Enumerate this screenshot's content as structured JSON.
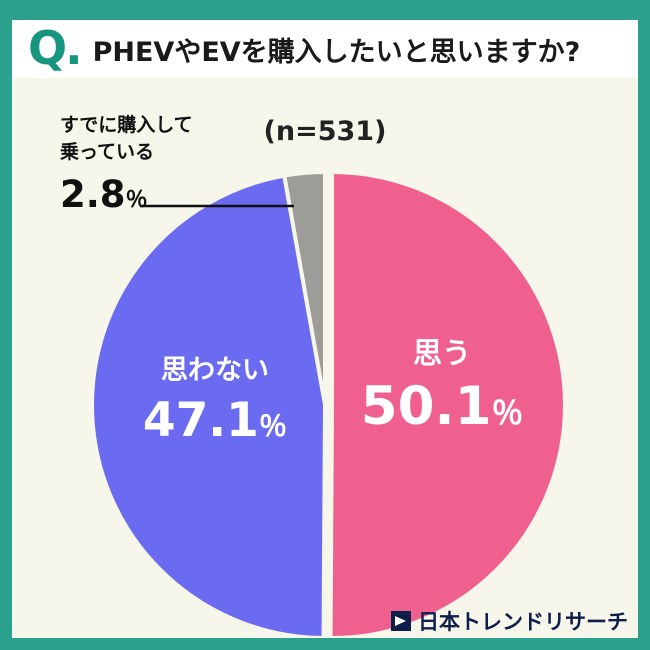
{
  "header": {
    "q_mark": "Q.",
    "title": "PHEVやEVを購入したいと思いますか?"
  },
  "sample": {
    "label": "(n=531)"
  },
  "chart_data": {
    "type": "pie",
    "title": "PHEVやEVを購入したいと思いますか?",
    "sample_label": "(n=531)",
    "percent_sign": "％",
    "direction": "clockwise",
    "start_angle_deg": -90,
    "slices": [
      {
        "label": "思う",
        "value": 50.1,
        "pct": "50.1",
        "color": "#F0608E",
        "exploded": true
      },
      {
        "label": "思わない",
        "value": 47.1,
        "pct": "47.1",
        "color": "#6B6BF2",
        "exploded": false
      },
      {
        "label": "すでに購入して乗っている",
        "value": 2.8,
        "pct": "2.8",
        "color": "#9D9C99",
        "exploded": false
      }
    ],
    "colors": {
      "frame": "#2BA18D",
      "background": "#F7F6EB",
      "slice_gap": "#F7F6EB"
    }
  },
  "callout": {
    "line1": "すでに購入して",
    "line2": "乗っている"
  },
  "footer": {
    "brand": "日本トレンドリサーチ"
  }
}
